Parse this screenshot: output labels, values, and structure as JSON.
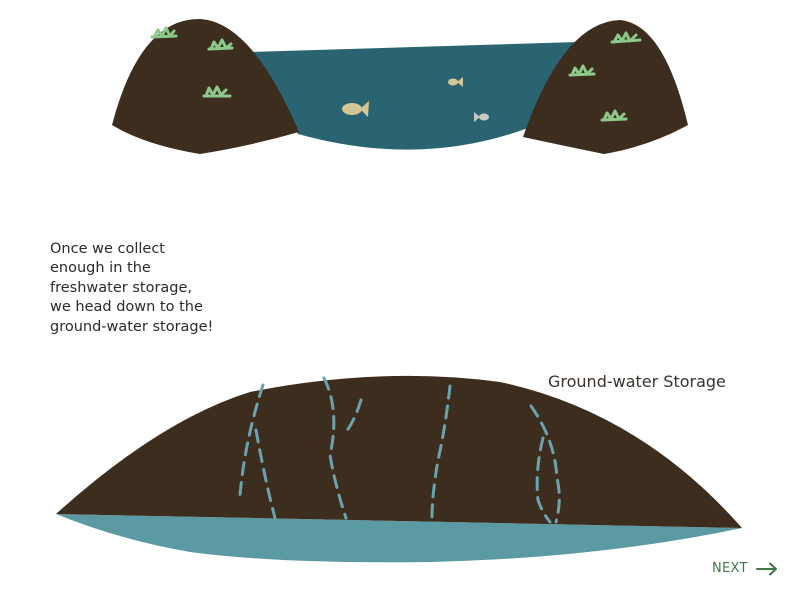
{
  "narration": {
    "text": "Once we collect\nenough in the\nfreshwater storage,\nwe head down to the\nground-water storage!"
  },
  "groundwater": {
    "label": "Ground-water Storage"
  },
  "navigation": {
    "next_label": "NEXT",
    "next_icon": "arrow-right-icon"
  },
  "colors": {
    "soil": "#3d2d1f",
    "lake_water": "#2a6470",
    "aquifer_water": "#5b9aa3",
    "seepage": "#6aa3ad",
    "grass": "#8cc98a",
    "fish_yellow": "#d4c793",
    "fish_grey": "#c9c9c4",
    "accent_green": "#3f7a45"
  }
}
